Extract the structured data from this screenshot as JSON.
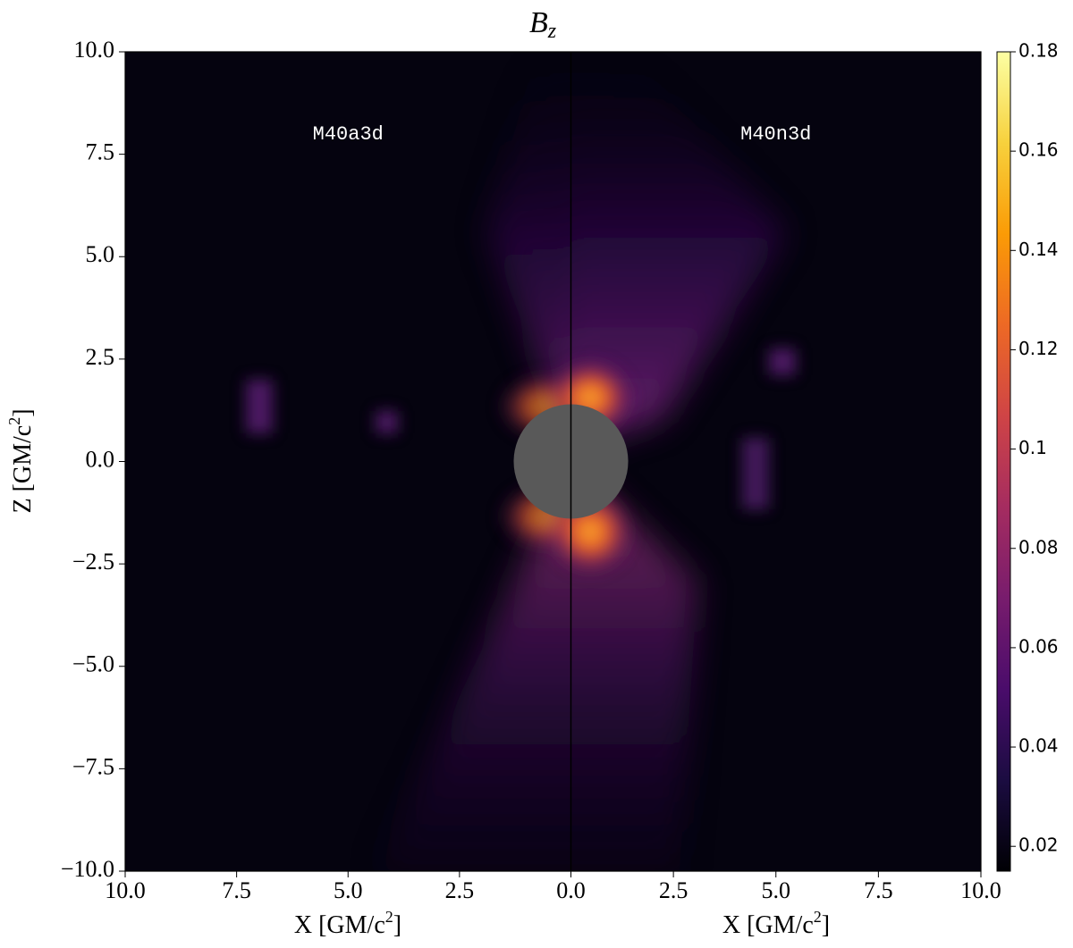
{
  "chart_data": {
    "type": "heatmap",
    "title": "B",
    "title_subscript": "z",
    "xlabel": [
      "X [GM/c",
      "2",
      "]"
    ],
    "ylabel": [
      "Z [GM/c",
      "2",
      "]"
    ],
    "ylim": [
      -10,
      10
    ],
    "yticks": [
      {
        "value": 10,
        "label": "10.0"
      },
      {
        "value": 7.5,
        "label": "7.5"
      },
      {
        "value": 5,
        "label": "5.0"
      },
      {
        "value": 2.5,
        "label": "2.5"
      },
      {
        "value": 0,
        "label": "0.0"
      },
      {
        "value": -2.5,
        "label": "−2.5"
      },
      {
        "value": -5,
        "label": "−5.0"
      },
      {
        "value": -7.5,
        "label": "−7.5"
      },
      {
        "value": -10,
        "label": "−10.0"
      }
    ],
    "panels": [
      {
        "label": "M40a3d",
        "xlim": [
          10,
          0
        ],
        "xticks": [
          {
            "value": 10,
            "label": "10.0"
          },
          {
            "value": 7.5,
            "label": "7.5"
          },
          {
            "value": 5,
            "label": "5.0"
          },
          {
            "value": 2.5,
            "label": "2.5"
          }
        ]
      },
      {
        "label": "M40n3d",
        "xlim": [
          0,
          10
        ],
        "xticks": [
          {
            "value": 0,
            "label": "0.0"
          },
          {
            "value": 2.5,
            "label": "2.5"
          },
          {
            "value": 5,
            "label": "5.0"
          },
          {
            "value": 7.5,
            "label": "7.5"
          },
          {
            "value": 10,
            "label": "10.0"
          }
        ]
      }
    ],
    "colorbar": {
      "colormap": "inferno",
      "clim": [
        0.015,
        0.18
      ],
      "ticks": [
        0.02,
        0.04,
        0.06,
        0.08,
        0.1,
        0.12,
        0.14,
        0.16,
        0.18
      ]
    }
  }
}
